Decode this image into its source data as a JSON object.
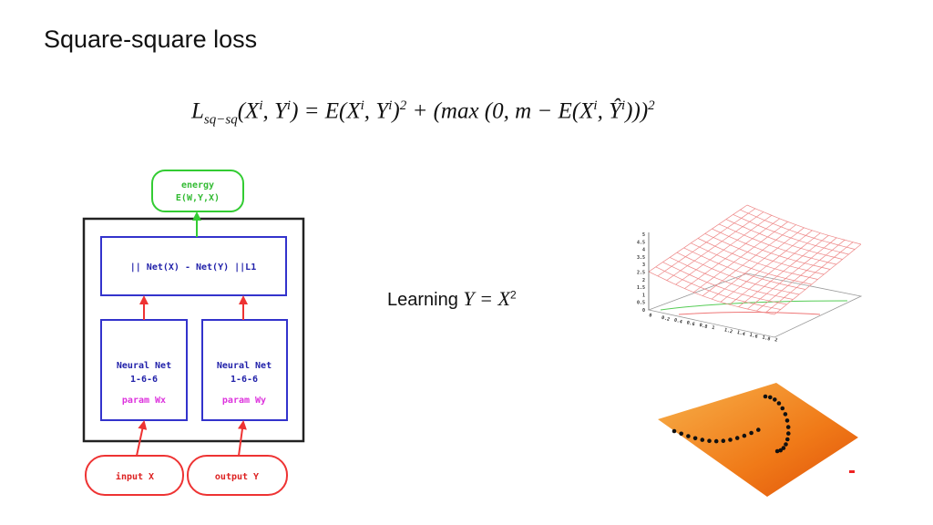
{
  "title": "Square-square loss",
  "formula": [
    {
      "text": "L"
    },
    {
      "sub": "sq−sq"
    },
    {
      "text": "(X"
    },
    {
      "sup": "i"
    },
    {
      "text": ", Y"
    },
    {
      "sup": "i"
    },
    {
      "text": ") = E(X"
    },
    {
      "sup": "i"
    },
    {
      "text": ", Y"
    },
    {
      "sup": "i"
    },
    {
      "text": ")"
    },
    {
      "sup": "2"
    },
    {
      "text": " + (max (0, m − E(X"
    },
    {
      "sup": "i"
    },
    {
      "text": ", Ŷ"
    },
    {
      "sup": "i"
    },
    {
      "text": ")))"
    },
    {
      "sup": "2"
    }
  ],
  "diagram": {
    "energy": [
      "energy",
      "E(W,Y,X)"
    ],
    "distance": "|| Net(X) - Net(Y) ||L1",
    "net_x": [
      "Neural Net",
      "1-6-6",
      "param Wx"
    ],
    "net_y": [
      "Neural Net",
      "1-6-6",
      "param Wy"
    ],
    "input": "input X",
    "output": "output Y"
  },
  "learning": [
    {
      "text": "Learning "
    },
    {
      "math": "Y = X"
    },
    {
      "sup": "2"
    }
  ],
  "plot_labels": {
    "z_ticks": [
      "0",
      "0.5",
      "1",
      "1.5",
      "2",
      "2.5",
      "3",
      "3.5",
      "4",
      "4.5",
      "5"
    ],
    "x_ticks": [
      "0",
      "0.2",
      "0.4",
      "0.6",
      "0.8",
      "1",
      "1.2",
      "1.4",
      "1.6",
      "1.8",
      "2"
    ]
  }
}
